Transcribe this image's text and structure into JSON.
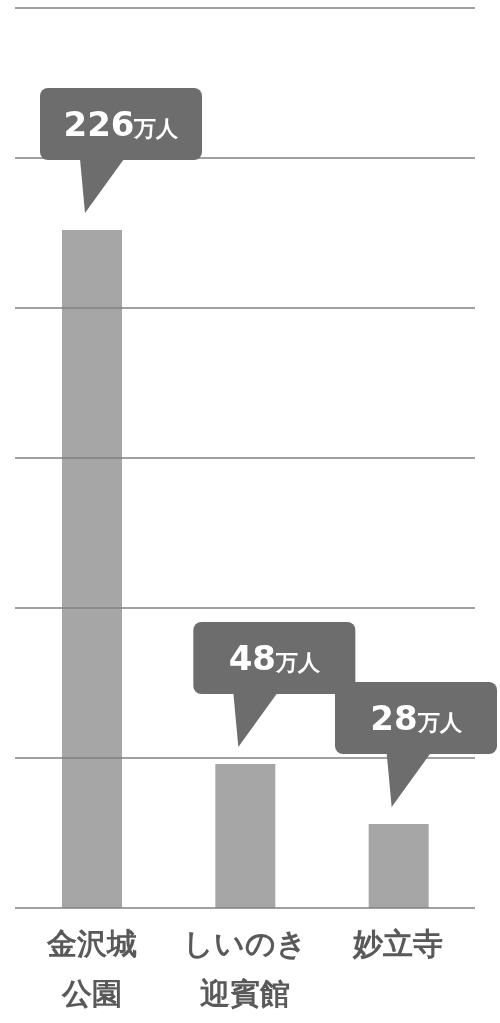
{
  "chart_data": {
    "type": "bar",
    "categories": [
      "金沢城公園",
      "しいのき迎賓館",
      "妙立寺"
    ],
    "values": [
      226,
      48,
      28
    ],
    "value_labels": [
      "226万人",
      "48万人",
      "28万人"
    ],
    "color": "#a6a6a6",
    "ylim": [
      0,
      300
    ],
    "yticks": [
      0,
      50,
      100,
      150,
      200,
      250,
      300
    ],
    "grid": "y",
    "tick_labels": "x"
  }
}
